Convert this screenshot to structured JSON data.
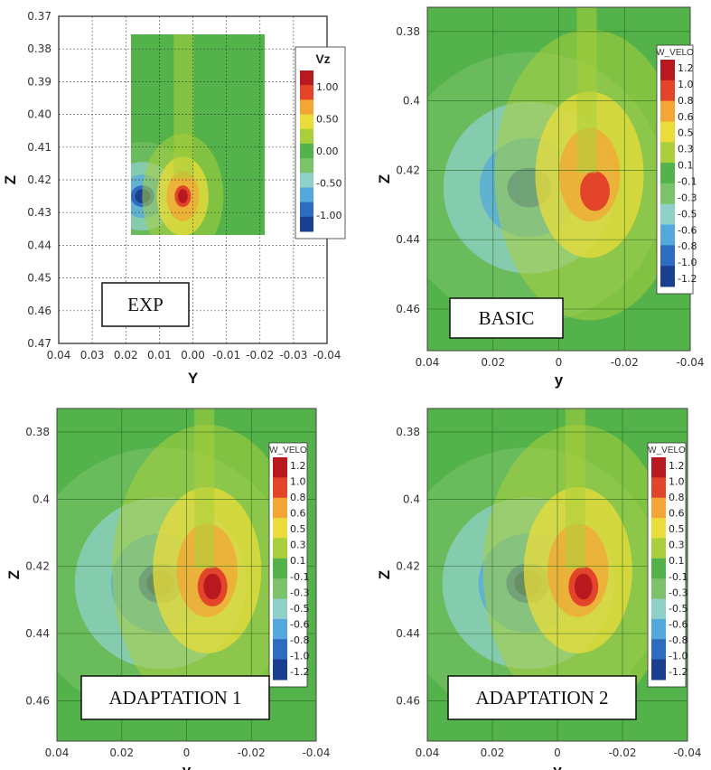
{
  "colors": {
    "background_green": "#53b24a",
    "colormap": [
      "#1a3f8f",
      "#2e6cc1",
      "#55a8dc",
      "#8fd0c8",
      "#7cc26a",
      "#53b24a",
      "#a9cf3c",
      "#e9dc3b",
      "#f3a536",
      "#e3452a",
      "#b8191f"
    ]
  },
  "chart_data": [
    {
      "type": "heatmap",
      "label": "EXP",
      "xlabel": "Y",
      "ylabel": "Z",
      "xlim": [
        0.04,
        -0.04
      ],
      "ylim": [
        0.47,
        0.37
      ],
      "x_ticks": [
        "0.04",
        "0.03",
        "0.02",
        "0.01",
        "0.00",
        "-0.01",
        "-0.02",
        "-0.03",
        "-0.04"
      ],
      "y_ticks": [
        "0.37",
        "0.38",
        "0.39",
        "0.40",
        "0.41",
        "0.42",
        "0.43",
        "0.44",
        "0.45",
        "0.46",
        "0.47"
      ],
      "grid": true,
      "data_extent": {
        "y": [
          0.018,
          -0.02
        ],
        "z": [
          0.376,
          0.437
        ]
      },
      "colorbar": {
        "title": "Vz",
        "ticks": [
          "1.00",
          "0.50",
          "0.00",
          "-0.50",
          "-1.00"
        ],
        "range": [
          -1.1,
          1.1
        ]
      },
      "vortices": [
        {
          "y": 0.015,
          "z": 0.425,
          "value": -1.1
        },
        {
          "y": 0.003,
          "z": 0.425,
          "value": 1.1
        }
      ]
    },
    {
      "type": "heatmap",
      "label": "BASIC",
      "xlabel": "y",
      "ylabel": "Z",
      "xlim": [
        0.04,
        -0.04
      ],
      "ylim": [
        0.472,
        0.373
      ],
      "x_ticks": [
        "0.04",
        "0.02",
        "0",
        "-0.02",
        "-0.04"
      ],
      "y_ticks": [
        "0.38",
        "0.4",
        "0.42",
        "0.44",
        "0.46"
      ],
      "grid": true,
      "colorbar": {
        "title": "W_VELO",
        "ticks": [
          "1.2",
          "1.0",
          "0.8",
          "0.6",
          "0.5",
          "0.3",
          "0.1",
          "-0.1",
          "-0.3",
          "-0.5",
          "-0.6",
          "-0.8",
          "-1.0",
          "-1.2"
        ],
        "range": [
          -1.2,
          1.2
        ]
      },
      "vortices": [
        {
          "y": 0.009,
          "z": 0.425,
          "value": -1.0
        },
        {
          "y": -0.011,
          "z": 0.426,
          "value": 1.0
        }
      ]
    },
    {
      "type": "heatmap",
      "label": "ADAPTATION 1",
      "xlabel": "y",
      "ylabel": "Z",
      "xlim": [
        0.04,
        -0.04
      ],
      "ylim": [
        0.472,
        0.373
      ],
      "x_ticks": [
        "0.04",
        "0.02",
        "0",
        "-0.02",
        "-0.04"
      ],
      "y_ticks": [
        "0.38",
        "0.4",
        "0.42",
        "0.44",
        "0.46"
      ],
      "grid": true,
      "colorbar": {
        "title": "W_VELO",
        "ticks": [
          "1.2",
          "1.0",
          "0.8",
          "0.6",
          "0.5",
          "0.3",
          "0.1",
          "-0.1",
          "-0.3",
          "-0.5",
          "-0.6",
          "-0.8",
          "-1.0",
          "-1.2"
        ],
        "range": [
          -1.2,
          1.2
        ]
      },
      "vortices": [
        {
          "y": 0.008,
          "z": 0.425,
          "value": -1.2
        },
        {
          "y": -0.008,
          "z": 0.426,
          "value": 1.2
        }
      ]
    },
    {
      "type": "heatmap",
      "label": "ADAPTATION 2",
      "xlabel": "y",
      "ylabel": "Z",
      "xlim": [
        0.04,
        -0.04
      ],
      "ylim": [
        0.472,
        0.373
      ],
      "x_ticks": [
        "0.04",
        "0.02",
        "0",
        "-0.02",
        "-0.04"
      ],
      "y_ticks": [
        "0.38",
        "0.4",
        "0.42",
        "0.44",
        "0.46"
      ],
      "grid": true,
      "colorbar": {
        "title": "W_VELO",
        "ticks": [
          "1.2",
          "1.0",
          "0.8",
          "0.6",
          "0.5",
          "0.3",
          "0.1",
          "-0.1",
          "-0.3",
          "-0.5",
          "-0.6",
          "-0.8",
          "-1.0",
          "-1.2"
        ],
        "range": [
          -1.2,
          1.2
        ]
      },
      "vortices": [
        {
          "y": 0.009,
          "z": 0.425,
          "value": -1.1
        },
        {
          "y": -0.008,
          "z": 0.426,
          "value": 1.1
        }
      ]
    }
  ]
}
